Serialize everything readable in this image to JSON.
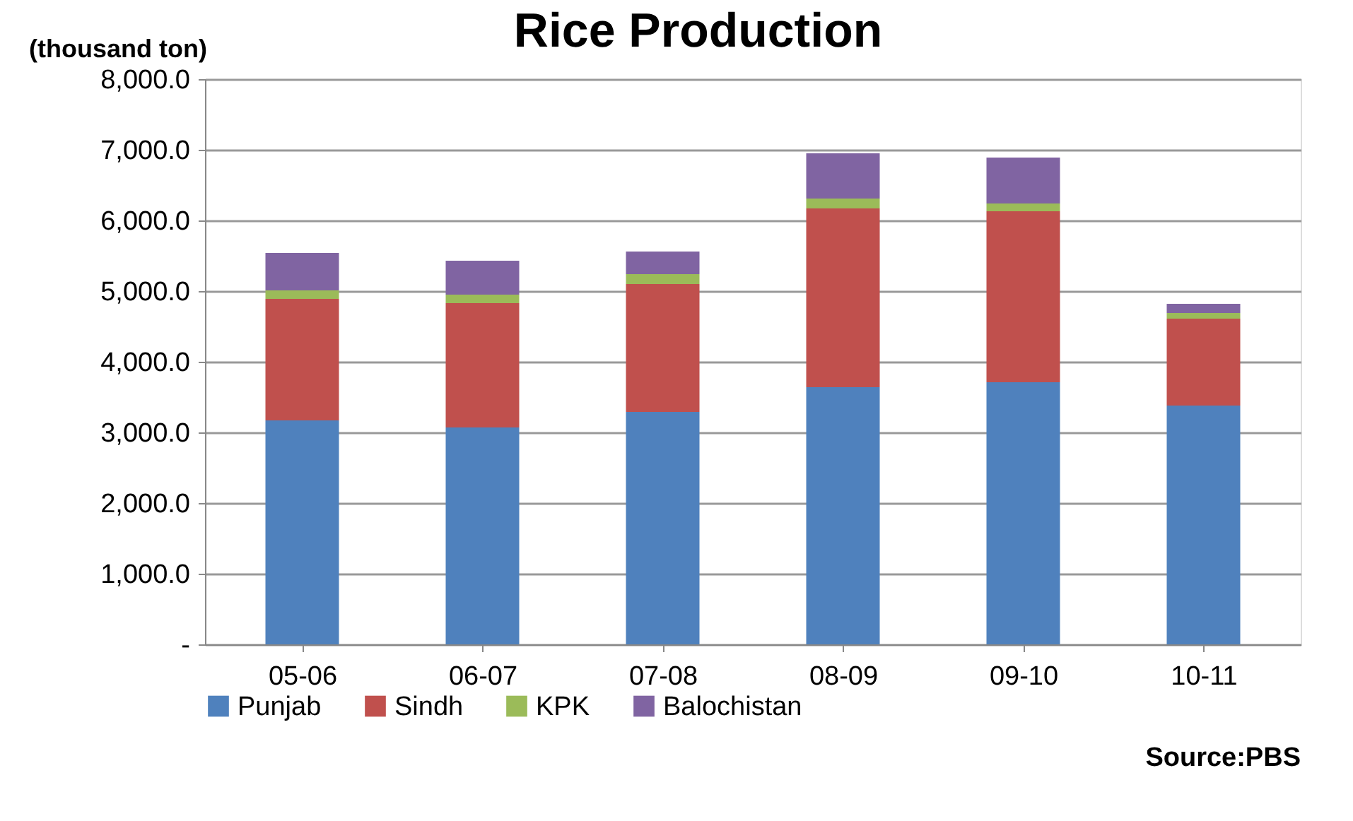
{
  "chart_data": {
    "type": "bar",
    "title": "Rice Production",
    "ylabel": "(thousand ton)",
    "stacked": true,
    "categories": [
      "05-06",
      "06-07",
      "07-08",
      "08-09",
      "09-10",
      "10-11"
    ],
    "series": [
      {
        "name": "Punjab",
        "color": "#4f81bd",
        "values": [
          3170,
          3070,
          3290,
          3640,
          3710,
          3380
        ]
      },
      {
        "name": "Sindh",
        "color": "#c0504d",
        "values": [
          1720,
          1760,
          1810,
          2530,
          2420,
          1230
        ]
      },
      {
        "name": "KPK",
        "color": "#9bbb59",
        "values": [
          120,
          120,
          140,
          140,
          110,
          80
        ]
      },
      {
        "name": "Balochistan",
        "color": "#8064a2",
        "values": [
          530,
          480,
          320,
          640,
          650,
          130
        ]
      }
    ],
    "ylim": [
      0,
      8000
    ],
    "yticks": [
      {
        "value": 0,
        "label": "-"
      },
      {
        "value": 1000,
        "label": "1,000.0"
      },
      {
        "value": 2000,
        "label": "2,000.0"
      },
      {
        "value": 3000,
        "label": "3,000.0"
      },
      {
        "value": 4000,
        "label": "4,000.0"
      },
      {
        "value": 5000,
        "label": "5,000.0"
      },
      {
        "value": 6000,
        "label": "6,000.0"
      },
      {
        "value": 7000,
        "label": "7,000.0"
      },
      {
        "value": 8000,
        "label": "8,000.0"
      }
    ],
    "grid": "y",
    "legend": "bottom",
    "annotations": [
      "Source:PBS"
    ]
  }
}
